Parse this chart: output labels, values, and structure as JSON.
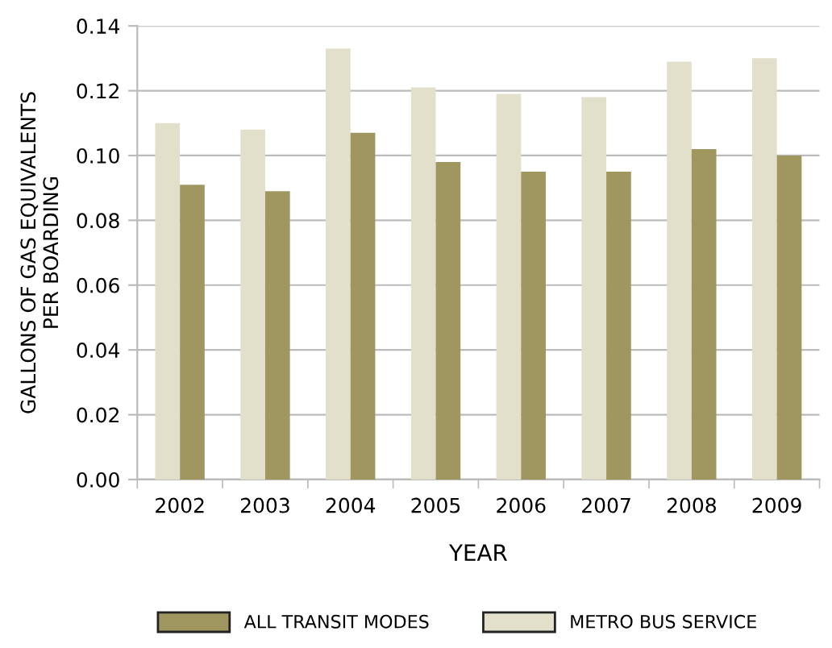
{
  "chart_data": {
    "type": "bar",
    "xlabel": "YEAR",
    "ylabel": "GALLONS OF GAS EQUIVALENTS\nPER BOARDING",
    "categories": [
      "2002",
      "2003",
      "2004",
      "2005",
      "2006",
      "2007",
      "2008",
      "2009"
    ],
    "series": [
      {
        "name": "METRO BUS SERVICE",
        "color": "#e2dfcb",
        "values": [
          0.11,
          0.108,
          0.133,
          0.121,
          0.119,
          0.118,
          0.129,
          0.13
        ]
      },
      {
        "name": "ALL TRANSIT MODES",
        "color": "#a09660",
        "values": [
          0.091,
          0.089,
          0.107,
          0.098,
          0.095,
          0.095,
          0.102,
          0.1
        ]
      }
    ],
    "ylim": [
      0,
      0.14
    ],
    "yticks": [
      {
        "value": 0,
        "label": "0.00"
      },
      {
        "value": 0.02,
        "label": "0.02"
      },
      {
        "value": 0.04,
        "label": "0.04"
      },
      {
        "value": 0.06,
        "label": "0.06"
      },
      {
        "value": 0.08,
        "label": "0.08"
      },
      {
        "value": 0.1,
        "label": "0.10"
      },
      {
        "value": 0.12,
        "label": "0.12"
      },
      {
        "value": 0.14,
        "label": "0.14"
      }
    ],
    "grid": "y",
    "legend": "bottom"
  }
}
